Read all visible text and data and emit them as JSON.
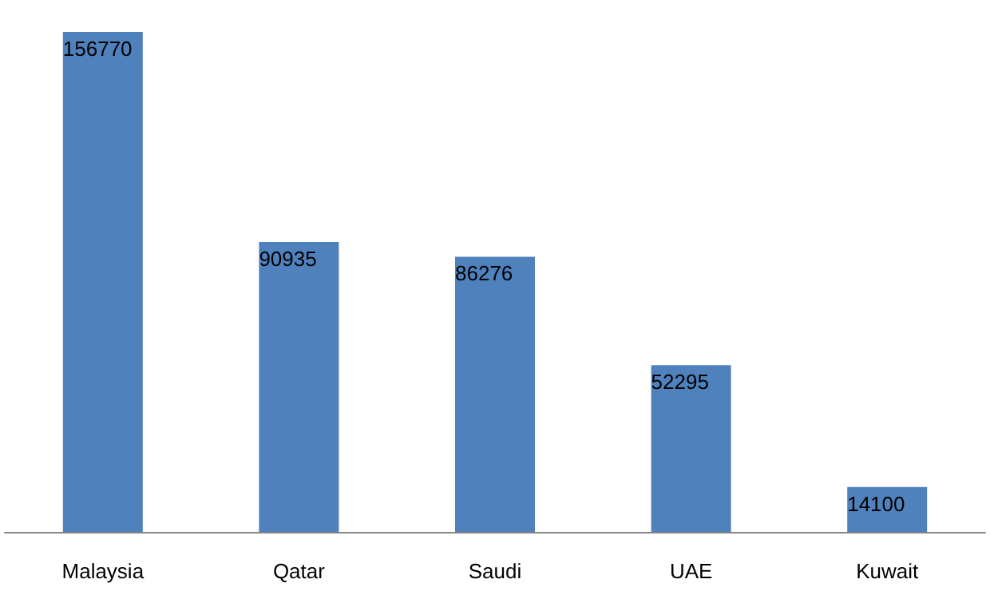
{
  "chart_data": {
    "type": "bar",
    "categories": [
      "Malaysia",
      "Qatar",
      "Saudi",
      "UAE",
      "Kuwait"
    ],
    "values": [
      156770,
      90935,
      86276,
      52295,
      14100
    ],
    "color": "#4f81bd",
    "data_labels": true
  }
}
